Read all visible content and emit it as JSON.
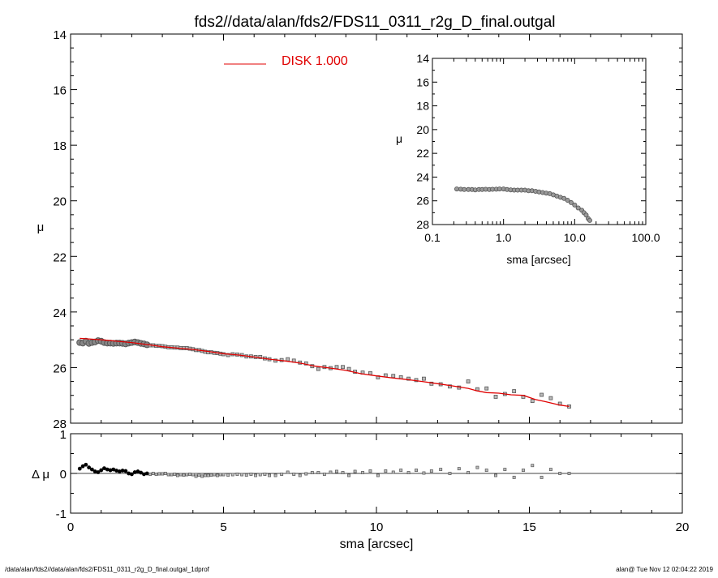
{
  "title": "fds2//data/alan/fds2/FDS11_0311_r2g_D_final.outgal",
  "footer_left": "/data/alan/fds2//data/alan/fds2/FDS11_0311_r2g_D_final.outgal_1dprof",
  "footer_right": "alan@  Tue Nov 12 02:04:22 2019",
  "colors": {
    "model": "#e00000",
    "data": "#555555",
    "axes": "#000000"
  },
  "chart_data": [
    {
      "id": "main",
      "type": "scatter",
      "xlabel": "",
      "ylabel": "μ",
      "xlim": [
        0,
        20
      ],
      "ylim": [
        28,
        14
      ],
      "xticks": [
        0,
        5,
        10,
        15,
        20
      ],
      "yticks": [
        14,
        16,
        18,
        20,
        22,
        24,
        26,
        28
      ],
      "legend": {
        "label": "DISK  1.000",
        "placement": "top-left"
      },
      "series": [
        {
          "role": "data",
          "x": [
            0.3,
            0.4,
            0.5,
            0.6,
            0.7,
            0.8,
            0.9,
            1.0,
            1.1,
            1.2,
            1.3,
            1.4,
            1.5,
            1.6,
            1.7,
            1.8,
            1.9,
            2.0,
            2.1,
            2.2,
            2.3,
            2.4,
            2.5,
            2.6,
            2.7,
            2.8,
            2.9,
            3.0,
            3.1,
            3.2,
            3.3,
            3.4,
            3.5,
            3.6,
            3.7,
            3.8,
            3.9,
            4.0,
            4.1,
            4.2,
            4.3,
            4.4,
            4.5,
            4.6,
            4.7,
            4.8,
            4.9,
            5.0,
            5.15,
            5.3,
            5.45,
            5.6,
            5.75,
            5.9,
            6.05,
            6.2,
            6.35,
            6.5,
            6.7,
            6.9,
            7.1,
            7.3,
            7.5,
            7.7,
            7.9,
            8.1,
            8.3,
            8.5,
            8.7,
            8.9,
            9.1,
            9.3,
            9.55,
            9.8,
            10.05,
            10.3,
            10.55,
            10.8,
            11.05,
            11.3,
            11.55,
            11.8,
            12.1,
            12.4,
            12.7,
            13.0,
            13.3,
            13.6,
            13.9,
            14.2,
            14.5,
            14.8,
            15.1,
            15.4,
            15.7,
            16.0,
            16.3
          ],
          "y": [
            25.1,
            25.12,
            25.05,
            25.13,
            25.1,
            25.08,
            25.03,
            25.05,
            25.1,
            25.12,
            25.12,
            25.13,
            25.12,
            25.12,
            25.13,
            25.15,
            25.12,
            25.1,
            25.08,
            25.1,
            25.13,
            25.15,
            25.18,
            25.2,
            25.2,
            25.22,
            25.22,
            25.23,
            25.25,
            25.27,
            25.27,
            25.28,
            25.28,
            25.3,
            25.3,
            25.3,
            25.32,
            25.34,
            25.37,
            25.37,
            25.4,
            25.43,
            25.45,
            25.45,
            25.47,
            25.48,
            25.5,
            25.52,
            25.55,
            25.52,
            25.53,
            25.55,
            25.6,
            25.6,
            25.62,
            25.62,
            25.67,
            25.7,
            25.75,
            25.73,
            25.7,
            25.75,
            25.82,
            25.85,
            25.95,
            26.05,
            25.98,
            26.02,
            25.98,
            25.98,
            26.05,
            26.15,
            26.18,
            26.2,
            26.35,
            26.28,
            26.3,
            26.35,
            26.4,
            26.45,
            26.4,
            26.58,
            26.6,
            26.68,
            26.72,
            26.5,
            26.78,
            26.75,
            27.05,
            26.95,
            26.85,
            27.05,
            27.2,
            26.98,
            27.1,
            27.3,
            27.4
          ]
        },
        {
          "role": "model",
          "name": "DISK",
          "x": [
            0.3,
            0.6,
            1.0,
            1.5,
            2.0,
            2.5,
            3.0,
            3.5,
            4.0,
            4.5,
            5.0,
            5.5,
            6.0,
            6.5,
            7.0,
            7.5,
            8.0,
            8.5,
            9.0,
            9.5,
            10.0,
            10.5,
            11.0,
            11.5,
            12.0,
            12.5,
            13.0,
            13.3,
            13.6,
            14.0,
            14.4,
            14.8,
            15.2,
            15.5,
            16.0,
            16.3
          ],
          "y": [
            24.95,
            24.97,
            25.0,
            25.05,
            25.1,
            25.17,
            25.25,
            25.3,
            25.35,
            25.42,
            25.5,
            25.55,
            25.62,
            25.7,
            25.76,
            25.84,
            25.95,
            26.02,
            26.1,
            26.22,
            26.3,
            26.37,
            26.43,
            26.5,
            26.58,
            26.66,
            26.75,
            26.84,
            26.9,
            26.92,
            26.98,
            27.0,
            27.15,
            27.22,
            27.35,
            27.4
          ]
        }
      ]
    },
    {
      "id": "residual",
      "type": "scatter",
      "xlabel": "sma [arcsec]",
      "ylabel": "Δ μ",
      "xlim": [
        0,
        20
      ],
      "ylim": [
        -1,
        1
      ],
      "xticks": [
        0,
        5,
        10,
        15,
        20
      ],
      "yticks": [
        1,
        0,
        -1
      ],
      "series": [
        {
          "role": "residual",
          "x": [
            0.3,
            0.4,
            0.5,
            0.6,
            0.7,
            0.8,
            0.9,
            1.0,
            1.1,
            1.2,
            1.3,
            1.4,
            1.5,
            1.6,
            1.7,
            1.8,
            1.9,
            2.0,
            2.1,
            2.2,
            2.3,
            2.4,
            2.5,
            2.6,
            2.7,
            2.8,
            2.9,
            3.0,
            3.1,
            3.2,
            3.3,
            3.4,
            3.5,
            3.6,
            3.7,
            3.8,
            3.9,
            4.0,
            4.1,
            4.2,
            4.3,
            4.4,
            4.5,
            4.6,
            4.7,
            4.8,
            4.9,
            5.0,
            5.15,
            5.3,
            5.45,
            5.6,
            5.75,
            5.9,
            6.05,
            6.2,
            6.35,
            6.5,
            6.7,
            6.9,
            7.1,
            7.3,
            7.5,
            7.7,
            7.9,
            8.1,
            8.3,
            8.5,
            8.7,
            8.9,
            9.1,
            9.3,
            9.55,
            9.8,
            10.05,
            10.3,
            10.55,
            10.8,
            11.05,
            11.3,
            11.55,
            11.8,
            12.1,
            12.4,
            12.7,
            13.0,
            13.3,
            13.6,
            13.9,
            14.2,
            14.5,
            14.8,
            15.1,
            15.4,
            15.7,
            16.0,
            16.3
          ],
          "y": [
            0.12,
            0.18,
            0.22,
            0.15,
            0.1,
            0.05,
            0.03,
            0.08,
            0.13,
            0.1,
            0.08,
            0.1,
            0.07,
            0.05,
            0.07,
            0.06,
            0.0,
            -0.02,
            0.03,
            0.05,
            0.02,
            -0.02,
            0.0,
            -0.02,
            0.0,
            -0.02,
            -0.01,
            -0.01,
            0.0,
            -0.03,
            -0.03,
            -0.02,
            -0.05,
            -0.03,
            -0.04,
            -0.03,
            -0.02,
            -0.03,
            -0.07,
            -0.04,
            -0.07,
            -0.05,
            -0.05,
            -0.04,
            -0.03,
            -0.05,
            -0.03,
            -0.03,
            -0.04,
            -0.03,
            -0.02,
            -0.03,
            -0.04,
            -0.02,
            -0.05,
            -0.03,
            -0.02,
            -0.05,
            -0.05,
            -0.02,
            0.03,
            -0.02,
            -0.05,
            -0.01,
            0.02,
            0.02,
            -0.02,
            0.03,
            0.05,
            0.02,
            -0.05,
            0.05,
            0.02,
            0.06,
            -0.05,
            0.06,
            0.03,
            0.08,
            0.02,
            0.08,
            0.01,
            0.06,
            0.1,
            0.0,
            0.12,
            0.02,
            0.15,
            0.08,
            -0.05,
            0.1,
            -0.1,
            0.08,
            0.2,
            -0.1,
            0.1,
            0.0,
            0.0
          ]
        }
      ]
    },
    {
      "id": "inset",
      "type": "scatter",
      "xlabel": "sma [arcsec]",
      "ylabel": "μ",
      "xscale": "log",
      "xlim": [
        0.1,
        100
      ],
      "ylim": [
        28,
        14
      ],
      "xticks": [
        0.1,
        1,
        10,
        100
      ],
      "xtick_labels": [
        "0.1",
        "1.0",
        "10.0",
        "100.0"
      ],
      "yticks": [
        14,
        16,
        18,
        20,
        22,
        24,
        26,
        28
      ],
      "series": [
        {
          "role": "data",
          "x": [
            0.22,
            0.25,
            0.28,
            0.32,
            0.36,
            0.4,
            0.45,
            0.5,
            0.56,
            0.63,
            0.7,
            0.79,
            0.88,
            1.0,
            1.12,
            1.26,
            1.41,
            1.58,
            1.78,
            2.0,
            2.24,
            2.51,
            2.82,
            3.16,
            3.55,
            3.98,
            4.47,
            5.01,
            5.62,
            6.31,
            7.08,
            7.94,
            8.91,
            10.0,
            11.2,
            12.6,
            13.5,
            14.5,
            15.5,
            16.3
          ],
          "y": [
            25.0,
            25.02,
            25.05,
            25.05,
            25.05,
            25.08,
            25.05,
            25.05,
            25.03,
            25.05,
            25.03,
            25.02,
            25.0,
            25.0,
            25.05,
            25.08,
            25.1,
            25.1,
            25.1,
            25.1,
            25.15,
            25.15,
            25.2,
            25.25,
            25.3,
            25.35,
            25.4,
            25.5,
            25.6,
            25.7,
            25.8,
            25.95,
            26.15,
            26.35,
            26.6,
            26.8,
            27.0,
            27.2,
            27.5,
            27.65
          ]
        }
      ]
    }
  ]
}
